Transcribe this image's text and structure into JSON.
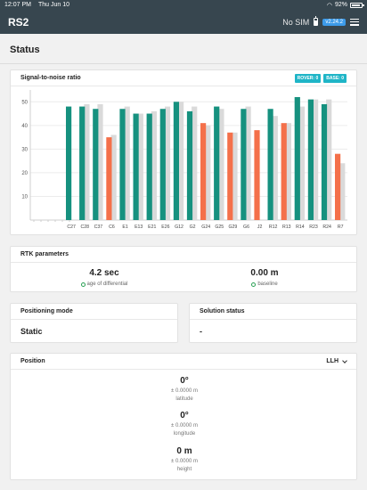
{
  "status_bar": {
    "time": "12:07 PM",
    "date": "Thu Jun 10",
    "wifi": "wifi",
    "battery": "92%"
  },
  "app": {
    "title": "RS2",
    "sim": "No SIM",
    "version": "v2.24.2",
    "colors": {
      "bar": "#37464f",
      "accent": "#1fb5c7"
    }
  },
  "page": {
    "title": "Status"
  },
  "snr": {
    "title": "Signal-to-noise ratio",
    "rover_badge": "ROVER: 0",
    "base_badge": "BASE: 0"
  },
  "chart_data": {
    "type": "bar",
    "title": "Signal-to-noise ratio",
    "xlabel": "",
    "ylabel": "",
    "ylim": [
      0,
      55
    ],
    "yticks": [
      10,
      20,
      30,
      40,
      50
    ],
    "grid": true,
    "categories": [
      "C27",
      "C28",
      "C37",
      "C6",
      "E1",
      "E13",
      "E21",
      "E26",
      "G12",
      "G2",
      "G24",
      "G25",
      "G29",
      "G6",
      "J2",
      "R12",
      "R13",
      "R14",
      "R23",
      "R24",
      "R7"
    ],
    "series": [
      {
        "name": "ROVER",
        "values": [
          48,
          48,
          47,
          35,
          47,
          45,
          45,
          47,
          50,
          46,
          41,
          48,
          37,
          47,
          38,
          47,
          41,
          52,
          51,
          49,
          28
        ]
      },
      {
        "name": "BASE",
        "values": [
          0,
          49,
          49,
          36,
          48,
          45,
          46,
          48,
          50,
          48,
          40,
          47,
          37,
          48,
          0,
          44,
          41,
          48,
          51,
          51,
          24
        ]
      }
    ],
    "colors": {
      "good": "#16917f",
      "weak": "#f4704a",
      "base": "#dadada"
    }
  },
  "rtk": {
    "title": "RTK parameters",
    "age_value": "4.2 sec",
    "age_label": "age of differential",
    "baseline_value": "0.00 m",
    "baseline_label": "baseline"
  },
  "positioning": {
    "title": "Positioning mode",
    "value": "Static"
  },
  "solution": {
    "title": "Solution status",
    "value": "-"
  },
  "position": {
    "title": "Position",
    "format": "LLH",
    "latitude": {
      "value": "0°",
      "error": "± 0.0000 m",
      "label": "latitude"
    },
    "longitude": {
      "value": "0°",
      "error": "± 0.0000 m",
      "label": "longitude"
    },
    "height": {
      "value": "0 m",
      "error": "± 0.0000 m",
      "label": "height"
    }
  }
}
